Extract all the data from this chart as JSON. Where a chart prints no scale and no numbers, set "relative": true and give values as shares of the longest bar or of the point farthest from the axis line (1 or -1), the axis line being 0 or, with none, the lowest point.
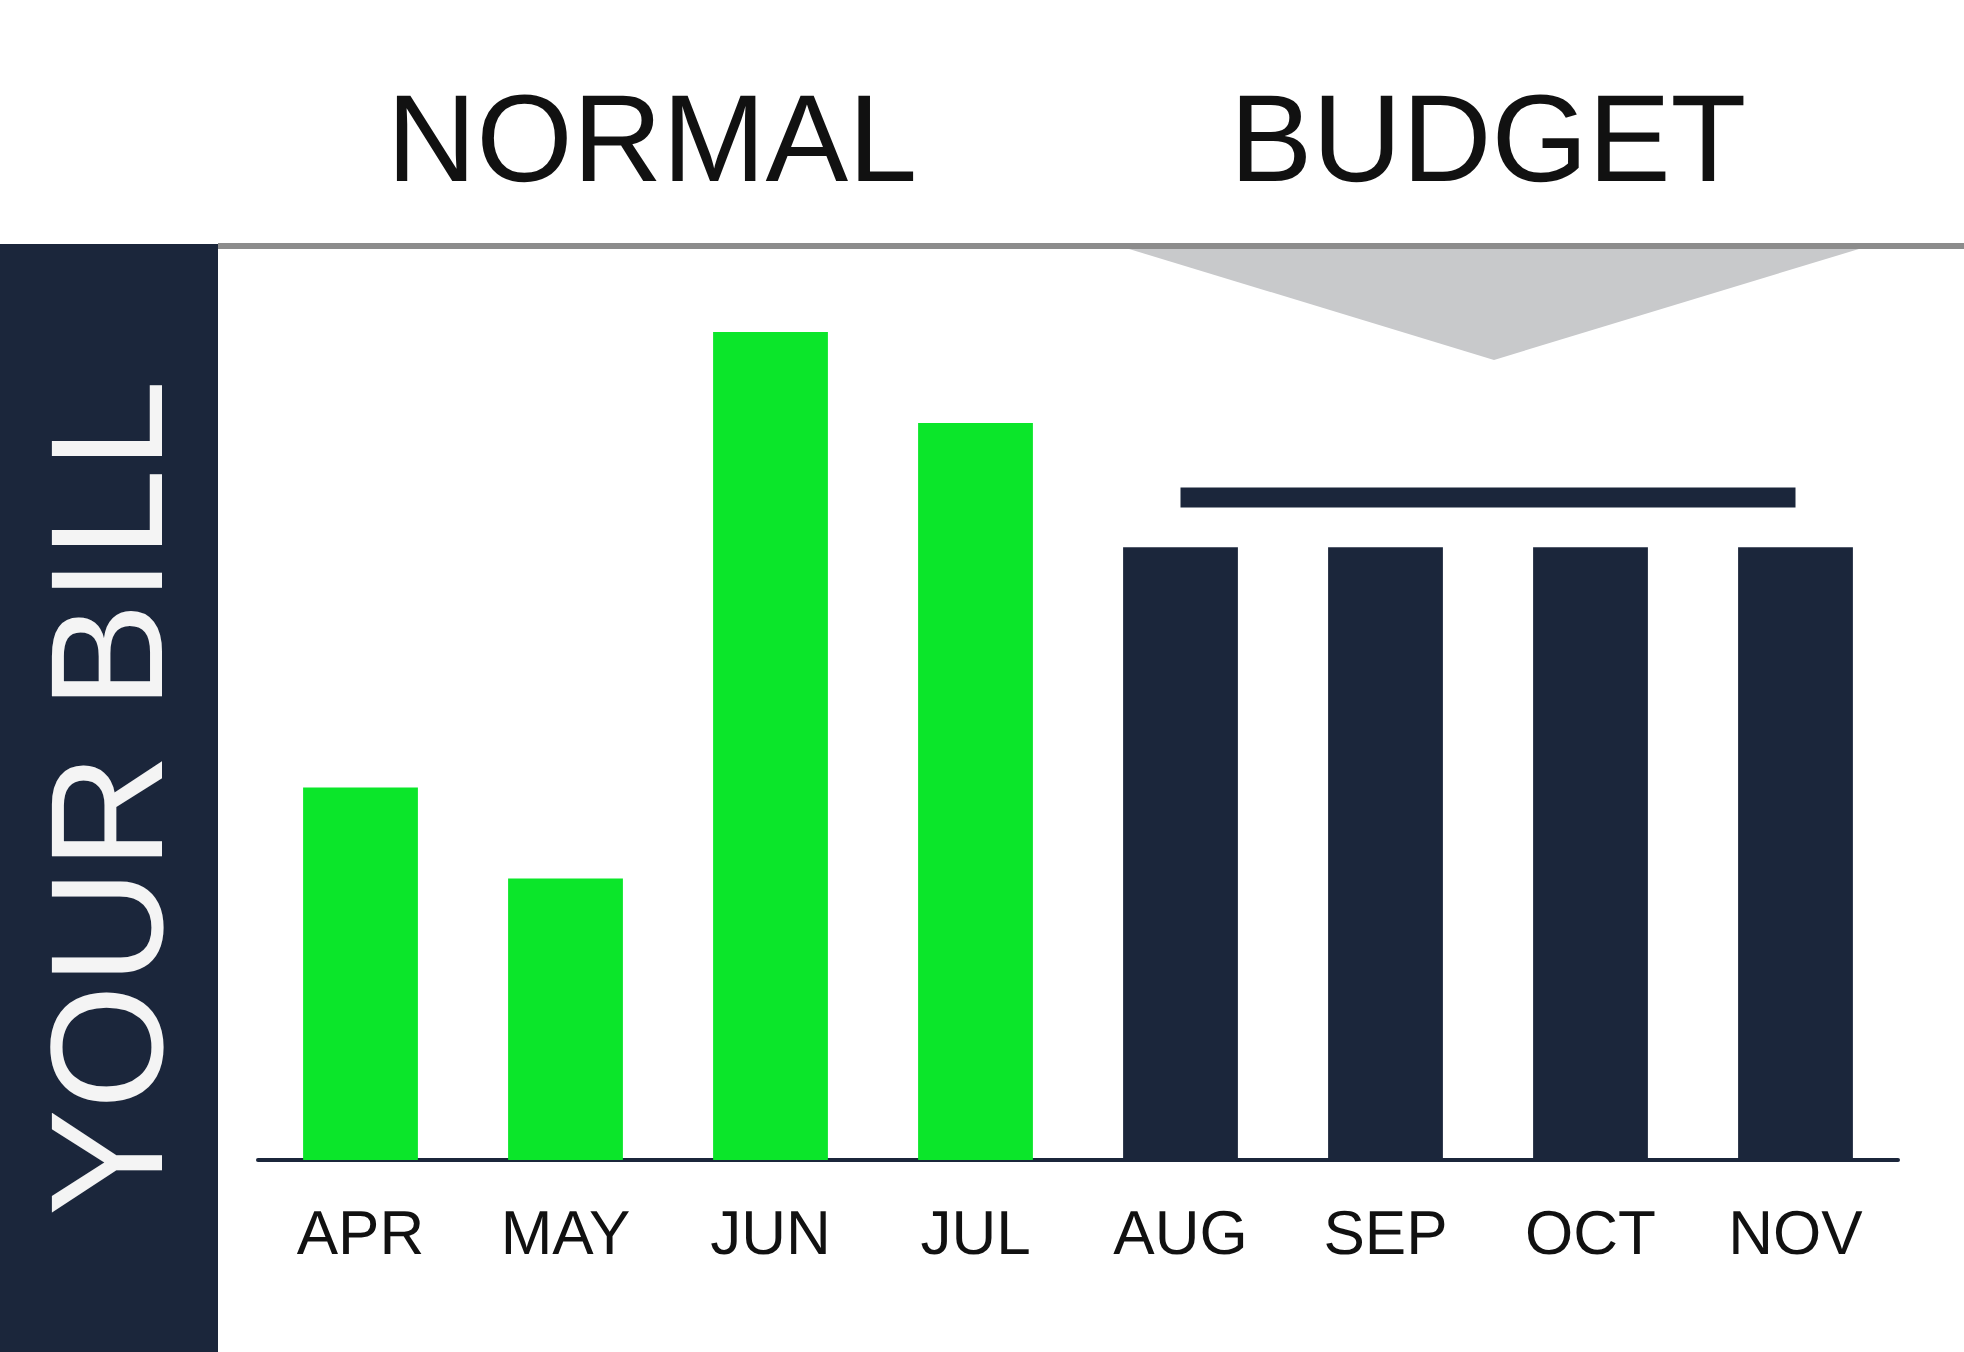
{
  "chart_data": {
    "type": "bar",
    "ylabel": "YOUR BILL",
    "categories": [
      "APR",
      "MAY",
      "JUN",
      "JUL",
      "AUG",
      "SEP",
      "OCT",
      "NOV"
    ],
    "relative": true,
    "marker": "none",
    "annotations": [
      "NORMAL",
      "BUDGET"
    ],
    "series": [
      {
        "values": [
          0.45,
          0.34,
          1,
          0.89,
          0.74,
          0.74,
          0.74,
          0.74
        ],
        "colors": [
          "#0be62a",
          "#0be62a",
          "#0be62a",
          "#0be62a",
          "#1b263b",
          "#1b263b",
          "#1b263b",
          "#1b263b"
        ]
      },
      {
        "type": "line",
        "color": "#1b263b",
        "values": [
          null,
          null,
          null,
          null,
          0.8,
          0.8,
          0.8,
          0.8
        ]
      }
    ]
  }
}
